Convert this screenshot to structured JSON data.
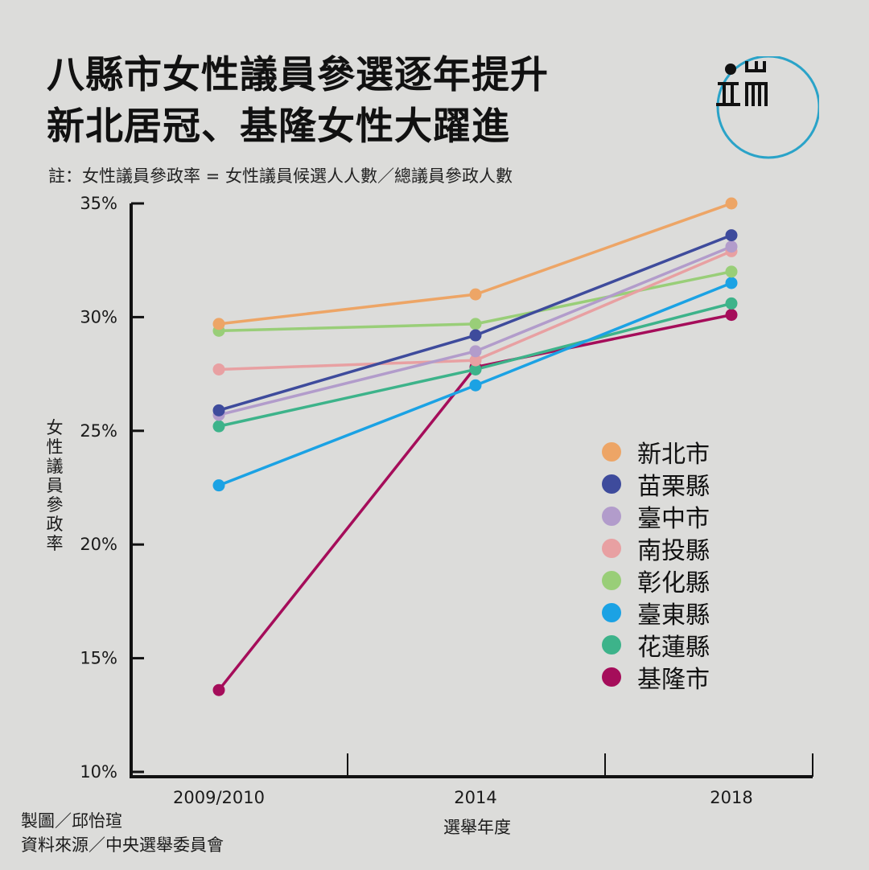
{
  "chart_data": {
    "type": "line",
    "title": [
      "八縣市女性議員參選逐年提升",
      "新北居冠、基隆女性大躍進"
    ],
    "subtitle": "註：女性議員參政率 = 女性議員候選人人數／總議員參政人數",
    "ylabel": "女性議員參政率",
    "xlabel": "選舉年度",
    "categories": [
      "2009/2010",
      "2014",
      "2018"
    ],
    "ylim": [
      10,
      35
    ],
    "yticks": [
      "35%",
      "30%",
      "25%",
      "20%",
      "15%",
      "10%"
    ],
    "ytick_values": [
      35,
      30,
      25,
      20,
      15,
      10
    ],
    "legend_position": "center-right",
    "series": [
      {
        "name": "新北市",
        "color": "#eda566",
        "values": [
          29.7,
          31.0,
          35.0
        ]
      },
      {
        "name": "苗栗縣",
        "color": "#3e4b9c",
        "values": [
          25.9,
          29.2,
          33.6
        ]
      },
      {
        "name": "臺中市",
        "color": "#b29ccb",
        "values": [
          25.7,
          28.5,
          33.1
        ]
      },
      {
        "name": "南投縣",
        "color": "#e8a0a2",
        "values": [
          27.7,
          28.1,
          32.9
        ]
      },
      {
        "name": "彰化縣",
        "color": "#99ce78",
        "values": [
          29.4,
          29.7,
          32.0
        ]
      },
      {
        "name": "臺東縣",
        "color": "#1ba2e4",
        "values": [
          22.6,
          27.0,
          31.5
        ]
      },
      {
        "name": "花蓮縣",
        "color": "#3db38a",
        "values": [
          25.2,
          27.7,
          30.6
        ]
      },
      {
        "name": "基隆市",
        "color": "#a50d5a",
        "values": [
          13.6,
          27.8,
          30.1
        ]
      }
    ]
  },
  "logo": {
    "name": "端傳媒 logo",
    "accent": "#2aa3c8"
  },
  "credits": [
    "製圖／邱怡瑄",
    "資料來源／中央選舉委員會"
  ]
}
